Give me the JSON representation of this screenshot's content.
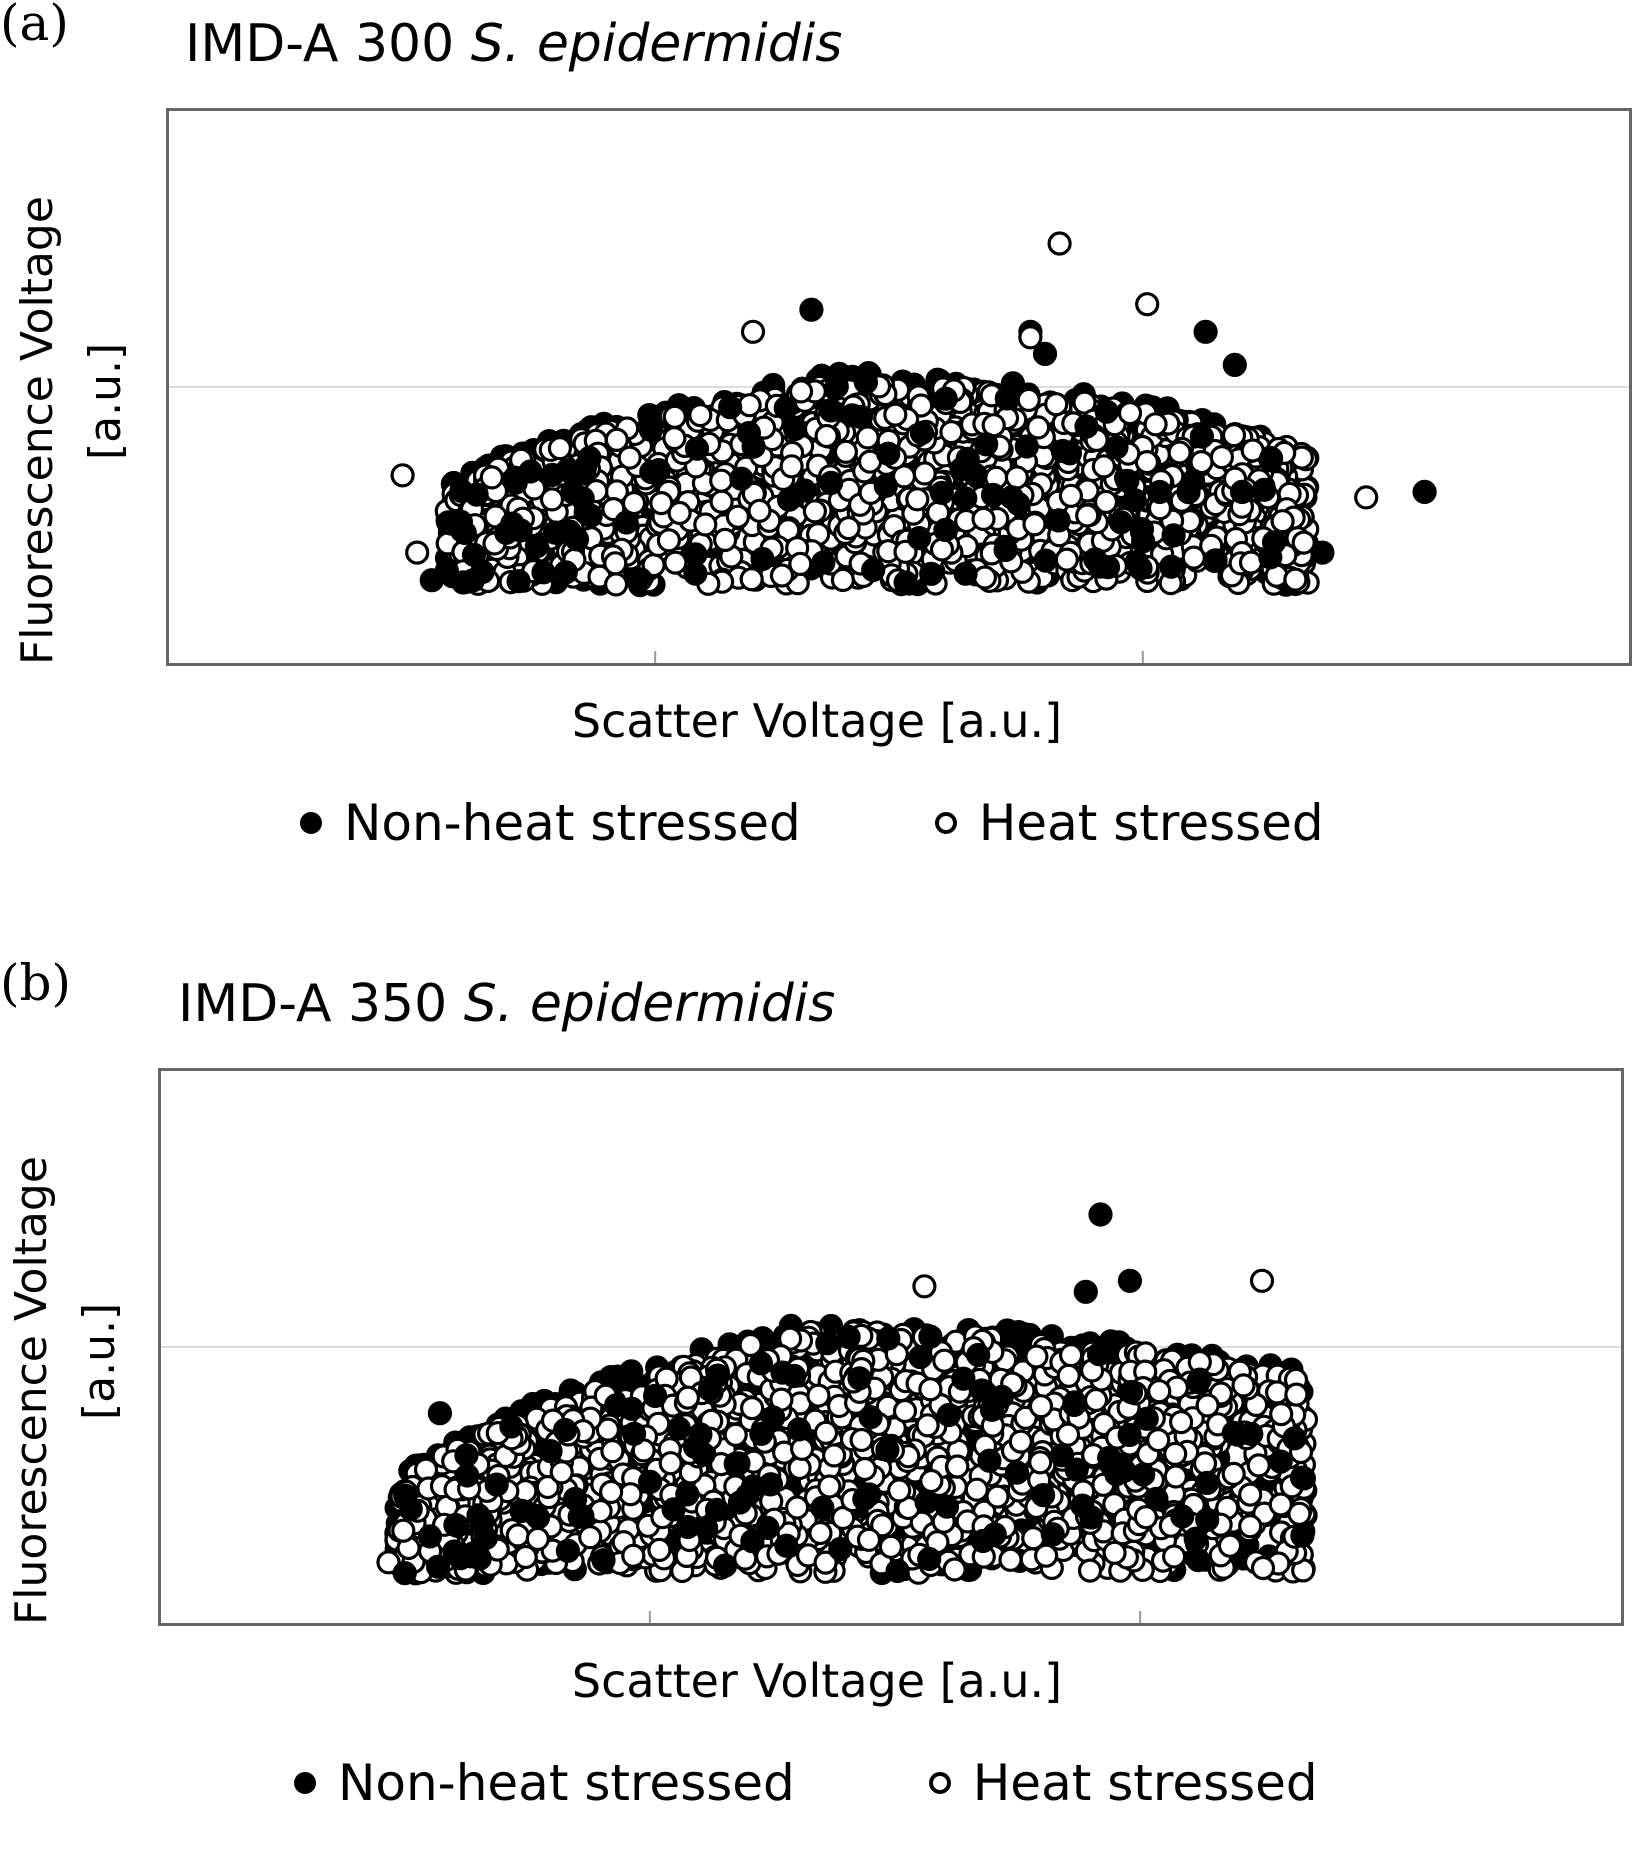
{
  "chart_data": [
    {
      "type": "scatter",
      "panel_label": "(a)",
      "title_prefix": "IMD-A 300 ",
      "title_species": "S. epidermidis",
      "xlabel": "Scatter Voltage [a.u.]",
      "ylabel_line1": "Fluorescence Voltage",
      "ylabel_line2": "[a.u.]",
      "xlim": [
        0,
        10
      ],
      "ylim": [
        0,
        5
      ],
      "grid_x": [
        3.33,
        6.67
      ],
      "grid_y": [
        2.5
      ],
      "legend_position": "bottom",
      "cluster": {
        "x_min": 1.9,
        "x_max": 7.8,
        "y_floor": 0.7,
        "y_left": 1.45,
        "y_peak": 2.55,
        "y_right": 1.9
      },
      "series": [
        {
          "name": "Non-heat stressed",
          "marker": "filled",
          "count": 900,
          "outliers": [
            [
              4.4,
              3.2
            ],
            [
              5.9,
              3.0
            ],
            [
              6.0,
              2.8
            ],
            [
              7.1,
              3.0
            ],
            [
              7.3,
              2.7
            ],
            [
              8.6,
              1.55
            ],
            [
              7.9,
              1.0
            ],
            [
              1.8,
              0.75
            ]
          ]
        },
        {
          "name": "Heat stressed",
          "marker": "open",
          "count": 1700,
          "outliers": [
            [
              6.1,
              3.8
            ],
            [
              6.7,
              3.25
            ],
            [
              5.9,
              2.95
            ],
            [
              1.6,
              1.7
            ],
            [
              8.2,
              1.5
            ],
            [
              4.0,
              3.0
            ],
            [
              1.7,
              1.0
            ]
          ]
        }
      ]
    },
    {
      "type": "scatter",
      "panel_label": "(b)",
      "title_prefix": "IMD-A 350 ",
      "title_species": "S. epidermidis",
      "xlabel": "Scatter Voltage [a.u.]",
      "ylabel_line1": "Fluorescence Voltage",
      "ylabel_line2": "[a.u.]",
      "xlim": [
        0,
        10
      ],
      "ylim": [
        0,
        5
      ],
      "grid_x": [
        3.33,
        6.67
      ],
      "grid_y": [
        2.5
      ],
      "legend_position": "bottom",
      "cluster": {
        "x_min": 1.6,
        "x_max": 7.8,
        "y_floor": 0.45,
        "y_left": 1.1,
        "y_peak": 2.65,
        "y_right": 2.2
      },
      "series": [
        {
          "name": "Non-heat stressed",
          "marker": "filled",
          "count": 950,
          "outliers": [
            [
              6.4,
              3.7
            ],
            [
              6.6,
              3.1
            ],
            [
              6.3,
              3.0
            ],
            [
              7.0,
              2.2
            ],
            [
              1.9,
              1.9
            ],
            [
              7.4,
              0.7
            ]
          ]
        },
        {
          "name": "Heat stressed",
          "marker": "open",
          "count": 1800,
          "outliers": [
            [
              7.5,
              3.1
            ],
            [
              7.2,
              1.8
            ],
            [
              5.2,
              3.05
            ],
            [
              1.55,
              0.55
            ],
            [
              6.8,
              2.1
            ]
          ]
        }
      ]
    }
  ]
}
